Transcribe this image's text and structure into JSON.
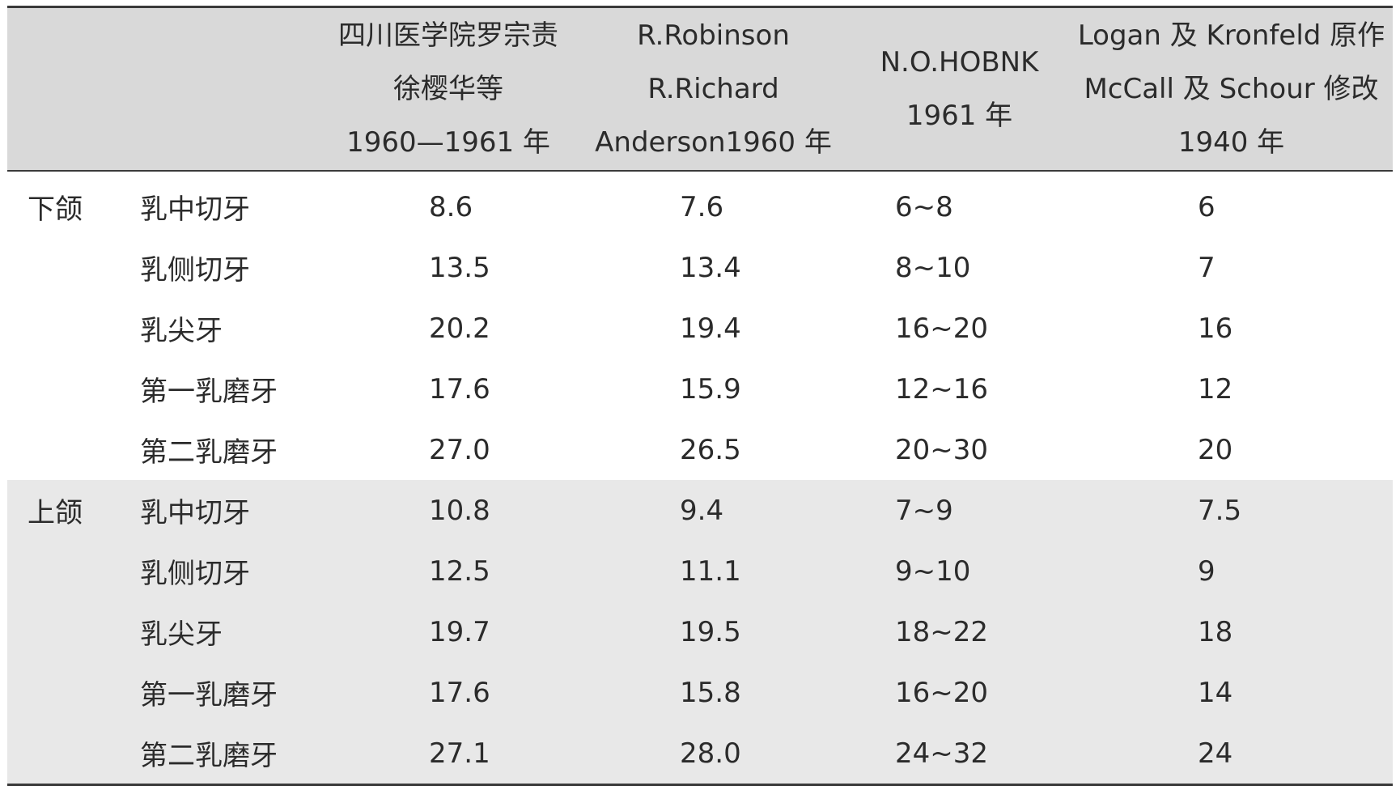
{
  "table": {
    "headers": [
      "",
      "",
      [
        "四川医学院罗宗责",
        "徐樱华等",
        "1960—1961 年"
      ],
      [
        "R.Robinson",
        "R.Richard",
        "Anderson1960 年"
      ],
      [
        "N.O.HOBNK",
        "1961 年"
      ],
      [
        "Logan 及 Kronfeld 原作",
        "McCall 及 Schour 修改",
        "1940 年"
      ]
    ],
    "groups": [
      {
        "jaw": "下颌",
        "rows": [
          {
            "tooth": "乳中切牙",
            "values": [
              "8.6",
              "7.6",
              "6~8",
              "6"
            ]
          },
          {
            "tooth": "乳侧切牙",
            "values": [
              "13.5",
              "13.4",
              "8~10",
              "7"
            ]
          },
          {
            "tooth": "乳尖牙",
            "values": [
              "20.2",
              "19.4",
              "16~20",
              "16"
            ]
          },
          {
            "tooth": "第一乳磨牙",
            "values": [
              "17.6",
              "15.9",
              "12~16",
              "12"
            ]
          },
          {
            "tooth": "第二乳磨牙",
            "values": [
              "27.0",
              "26.5",
              "20~30",
              "20"
            ]
          }
        ]
      },
      {
        "jaw": "上颌",
        "rows": [
          {
            "tooth": "乳中切牙",
            "values": [
              "10.8",
              "9.4",
              "7~9",
              "7.5"
            ]
          },
          {
            "tooth": "乳侧切牙",
            "values": [
              "12.5",
              "11.1",
              "9~10",
              "9"
            ]
          },
          {
            "tooth": "乳尖牙",
            "values": [
              "19.7",
              "19.5",
              "18~22",
              "18"
            ]
          },
          {
            "tooth": "第一乳磨牙",
            "values": [
              "17.6",
              "15.8",
              "16~20",
              "14"
            ]
          },
          {
            "tooth": "第二乳磨牙",
            "values": [
              "27.1",
              "28.0",
              "24~32",
              "24"
            ]
          }
        ]
      }
    ]
  },
  "colors": {
    "header_bg": "#d9d9d9",
    "upper_group_bg": "#e8e8e8",
    "rule": "#3a3a3a",
    "text": "#2b2b2b"
  }
}
